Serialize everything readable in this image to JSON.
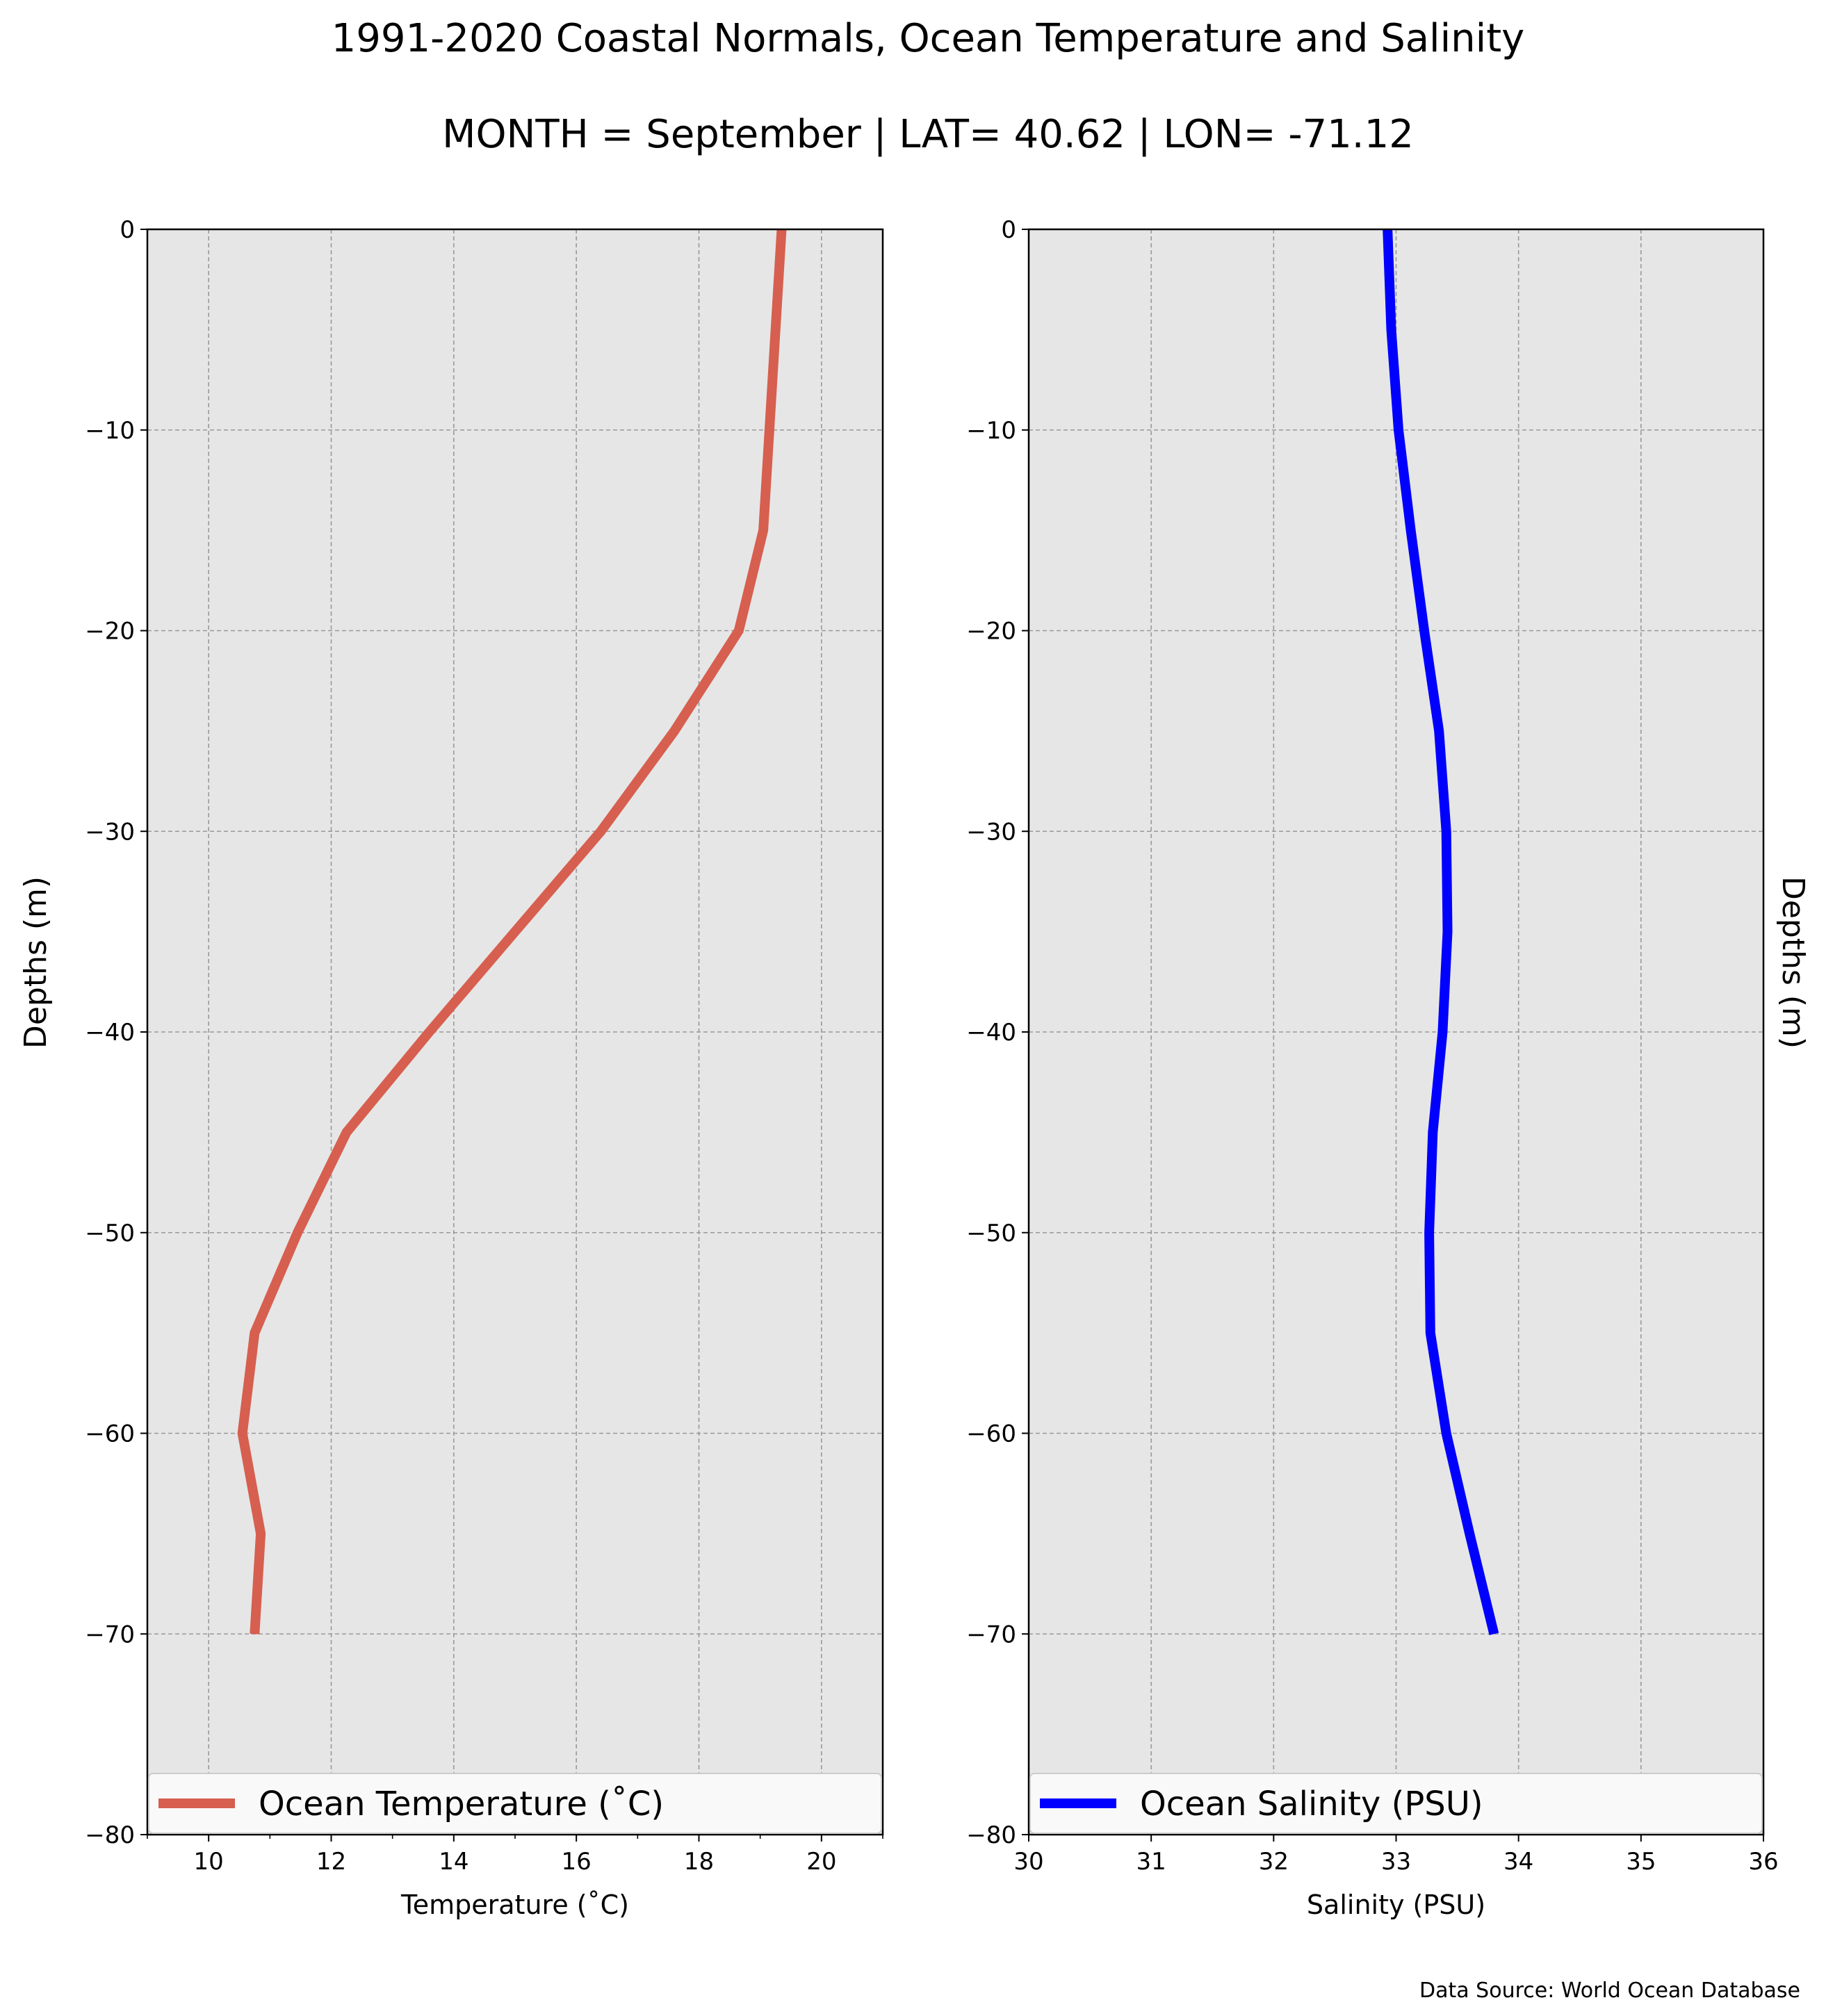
{
  "figure": {
    "title": "1991-2020 Coastal Normals, Ocean Temperature and Salinity",
    "subtitle": "MONTH = September | LAT= 40.62 | LON= -71.12",
    "source": "Data Source: World Ocean Database"
  },
  "chart_data": [
    {
      "type": "line",
      "xlabel": "Temperature ($^\\circ$C)",
      "xlabel_display": "Temperature (˚C)",
      "ylabel": "Depths (m)",
      "xlim": [
        9,
        21
      ],
      "ylim": [
        -80,
        0
      ],
      "xticks": [
        10,
        12,
        14,
        16,
        18,
        20
      ],
      "yticks": [
        0,
        -10,
        -20,
        -30,
        -40,
        -50,
        -60,
        -70,
        -80
      ],
      "grid": true,
      "legend": "bottom",
      "series": [
        {
          "name": "Ocean Temperature (˚C)",
          "color": "#d65f4f",
          "points": [
            [
              19.35,
              0
            ],
            [
              19.25,
              -5
            ],
            [
              19.15,
              -10
            ],
            [
              19.05,
              -15
            ],
            [
              18.65,
              -20
            ],
            [
              17.6,
              -25
            ],
            [
              16.4,
              -30
            ],
            [
              15.0,
              -35
            ],
            [
              13.6,
              -40
            ],
            [
              12.25,
              -45
            ],
            [
              11.45,
              -50
            ],
            [
              10.75,
              -55
            ],
            [
              10.55,
              -60
            ],
            [
              10.85,
              -65
            ],
            [
              10.75,
              -70
            ]
          ]
        }
      ]
    },
    {
      "type": "line",
      "xlabel": "Salinity (PSU)",
      "ylabel": "Depths (m)",
      "xlim": [
        30,
        36
      ],
      "ylim": [
        -80,
        0
      ],
      "xticks": [
        30,
        31,
        32,
        33,
        34,
        35,
        36
      ],
      "yticks": [
        0,
        -10,
        -20,
        -30,
        -40,
        -50,
        -60,
        -70,
        -80
      ],
      "grid": true,
      "legend": "bottom",
      "series": [
        {
          "name": "Ocean Salinity (PSU)",
          "color": "#0000ff",
          "points": [
            [
              32.93,
              0
            ],
            [
              32.96,
              -5
            ],
            [
              33.02,
              -10
            ],
            [
              33.12,
              -15
            ],
            [
              33.23,
              -20
            ],
            [
              33.35,
              -25
            ],
            [
              33.41,
              -30
            ],
            [
              33.42,
              -35
            ],
            [
              33.38,
              -40
            ],
            [
              33.3,
              -45
            ],
            [
              33.27,
              -50
            ],
            [
              33.28,
              -55
            ],
            [
              33.41,
              -60
            ],
            [
              33.6,
              -65
            ],
            [
              33.8,
              -70
            ]
          ]
        }
      ]
    }
  ]
}
